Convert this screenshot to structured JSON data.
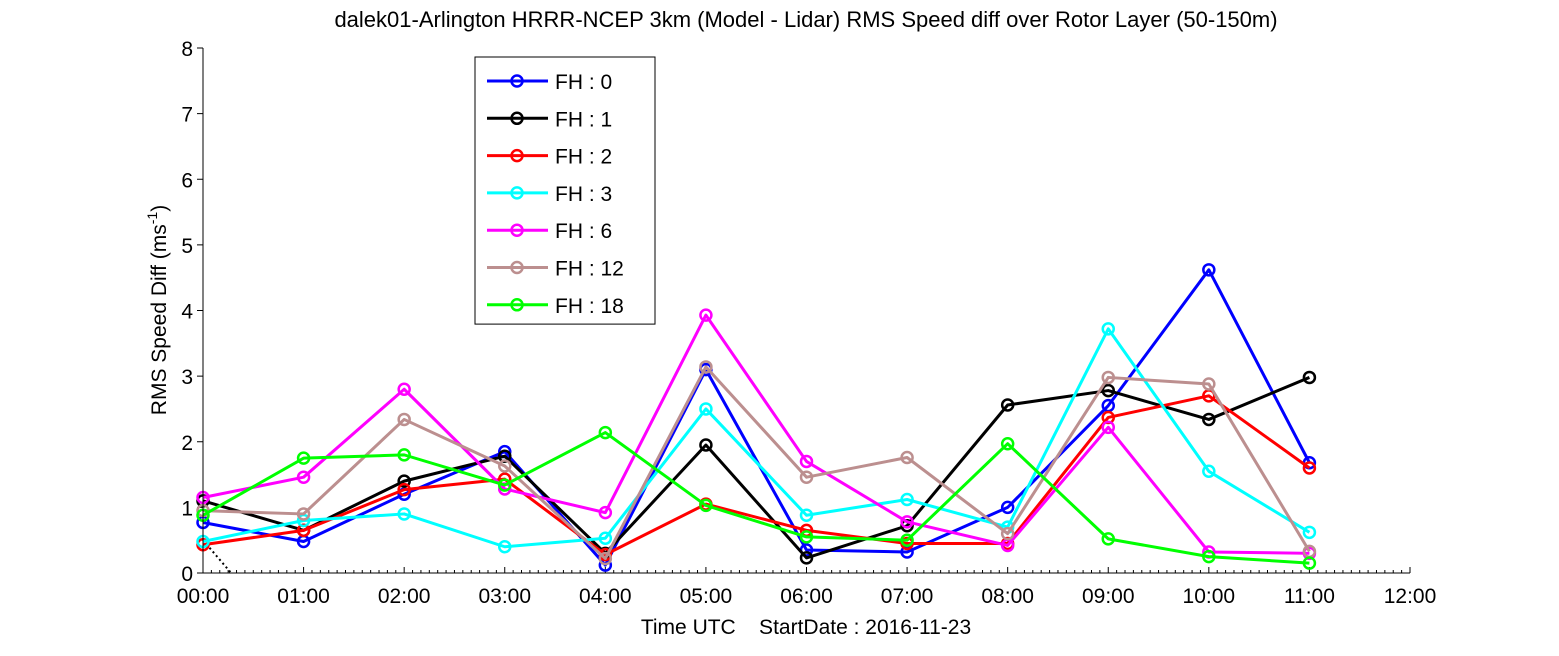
{
  "chart_data": {
    "type": "line",
    "title": "dalek01-Arlington HRRR-NCEP 3km (Model - Lidar) RMS Speed diff over Rotor Layer (50-150m)",
    "xlabel": "Time UTC    StartDate : 2016-11-23",
    "ylabel_main": "RMS Speed Diff (ms",
    "ylabel_sup": "-1",
    "ylabel_close": ")",
    "x_ticks": [
      "00:00",
      "01:00",
      "02:00",
      "03:00",
      "04:00",
      "05:00",
      "06:00",
      "07:00",
      "08:00",
      "09:00",
      "10:00",
      "11:00",
      "12:00"
    ],
    "y_ticks": [
      "0",
      "1",
      "2",
      "3",
      "4",
      "5",
      "6",
      "7",
      "8"
    ],
    "xlim": [
      0,
      12
    ],
    "ylim": [
      0,
      8
    ],
    "legend_position": "upper-left",
    "x": [
      0,
      1,
      2,
      3,
      4,
      5,
      6,
      7,
      8,
      9,
      10,
      11
    ],
    "series": [
      {
        "name": "FH : 0",
        "color": "#0000ff",
        "values": [
          0.77,
          0.48,
          1.2,
          1.85,
          0.12,
          3.1,
          0.35,
          0.32,
          1.0,
          2.55,
          4.62,
          1.68
        ]
      },
      {
        "name": "FH : 1",
        "color": "#000000",
        "values": [
          1.1,
          0.65,
          1.4,
          1.78,
          0.3,
          1.95,
          0.23,
          0.72,
          2.56,
          2.78,
          2.34,
          2.98
        ]
      },
      {
        "name": "FH : 2",
        "color": "#ff0000",
        "values": [
          0.43,
          0.65,
          1.27,
          1.43,
          0.28,
          1.05,
          0.65,
          0.45,
          0.45,
          2.37,
          2.7,
          1.6
        ]
      },
      {
        "name": "FH : 3",
        "color": "#00ffff",
        "values": [
          0.48,
          0.8,
          0.9,
          0.4,
          0.53,
          2.5,
          0.88,
          1.12,
          0.7,
          3.72,
          1.55,
          0.62
        ]
      },
      {
        "name": "FH : 6",
        "color": "#ff00ff",
        "values": [
          1.15,
          1.46,
          2.8,
          1.28,
          0.92,
          3.93,
          1.7,
          0.78,
          0.42,
          2.22,
          0.32,
          0.3
        ]
      },
      {
        "name": "FH : 12",
        "color": "#bc8f8f",
        "values": [
          0.95,
          0.9,
          2.34,
          1.63,
          0.22,
          3.14,
          1.46,
          1.76,
          0.6,
          2.98,
          2.88,
          0.33
        ]
      },
      {
        "name": "FH : 18",
        "color": "#00ff00",
        "values": [
          0.88,
          1.75,
          1.8,
          1.34,
          2.14,
          1.03,
          0.55,
          0.5,
          1.97,
          0.52,
          0.25,
          0.15
        ]
      }
    ],
    "dotted_line": {
      "color": "#000000",
      "x": [
        0,
        0.28
      ],
      "y": [
        0.5,
        0
      ]
    },
    "grid": false
  }
}
